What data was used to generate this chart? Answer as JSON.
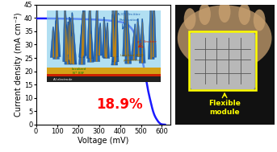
{
  "jv_voltage": [
    0,
    50,
    100,
    150,
    200,
    250,
    300,
    350,
    400,
    430,
    450,
    460,
    470,
    480,
    490,
    500,
    510,
    520,
    530,
    545,
    560,
    575,
    590,
    605,
    615
  ],
  "jv_current": [
    39.8,
    39.8,
    39.75,
    39.7,
    39.6,
    39.5,
    39.3,
    39.0,
    38.5,
    37.8,
    36.5,
    35.5,
    34.0,
    32.0,
    29.5,
    26.5,
    23.0,
    19.0,
    14.5,
    9.0,
    4.5,
    2.0,
    0.5,
    0.05,
    0.0
  ],
  "xlim": [
    0,
    640
  ],
  "ylim": [
    0,
    45
  ],
  "xticks": [
    0,
    100,
    200,
    300,
    400,
    500,
    600
  ],
  "yticks": [
    0,
    5,
    10,
    15,
    20,
    25,
    30,
    35,
    40,
    45
  ],
  "xlabel": "Voltage (mV)",
  "ylabel": "Current density (mA cm⁻²)",
  "curve_color": "#1a1aff",
  "efficiency_text": "18.9%",
  "efficiency_color": "#ff0000",
  "bg_color": "#ffffff",
  "plot_bg": "#ffffff",
  "axis_fontsize": 7,
  "tick_fontsize": 6,
  "right_panel_bg": "#1a1a1a",
  "yellow_box_color": "#ffff00",
  "flexible_module_text": "Flexible\nmodule",
  "flexible_module_color": "#ffff00",
  "wire_color": "#1a5fb4",
  "wire_edge_color": "#0d3b7a",
  "wire_core_color": "#c8860a",
  "sky_color": "#87ceeb",
  "gold_color": "#d4a017",
  "red_color": "#cc2200",
  "black_color": "#222222"
}
